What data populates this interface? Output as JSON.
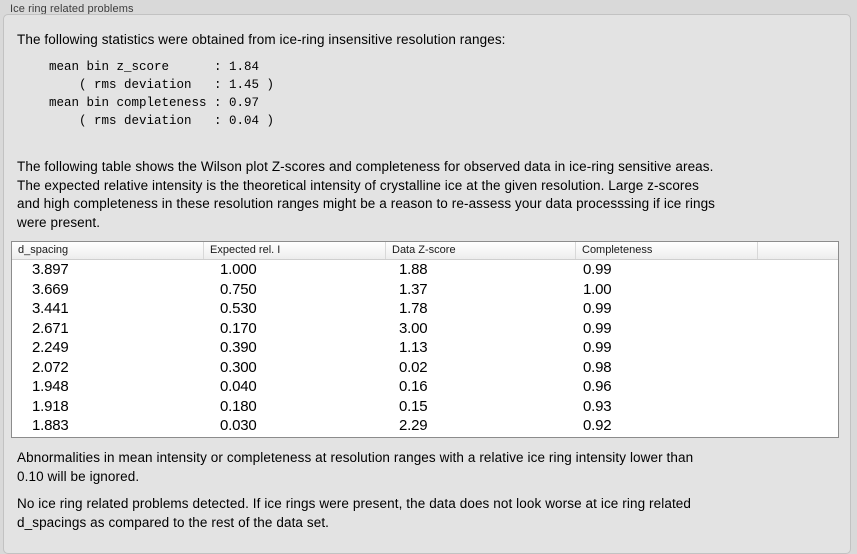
{
  "section": {
    "title": "Ice ring related problems"
  },
  "intro": "The following statistics were obtained from ice-ring insensitive resolution ranges:",
  "stats": {
    "lines": [
      "mean bin z_score      : 1.84",
      "    ( rms deviation   : 1.45 )",
      "mean bin completeness : 0.97",
      "    ( rms deviation   : 0.04 )"
    ]
  },
  "description": {
    "lines": [
      "The following table shows the Wilson plot Z-scores and completeness for observed data in ice-ring sensitive areas.",
      "The expected relative intensity is the theoretical intensity of crystalline ice at the given resolution. Large z-scores",
      "and high completeness in these resolution ranges might be a reason to re-assess your data processsing if ice rings",
      "were present."
    ]
  },
  "table": {
    "columns": [
      "d_spacing",
      "Expected rel. I",
      "Data Z-score",
      "Completeness"
    ],
    "rows": [
      [
        "3.897",
        "1.000",
        "1.88",
        "0.99"
      ],
      [
        "3.669",
        "0.750",
        "1.37",
        "1.00"
      ],
      [
        "3.441",
        "0.530",
        "1.78",
        "0.99"
      ],
      [
        "2.671",
        "0.170",
        "3.00",
        "0.99"
      ],
      [
        "2.249",
        "0.390",
        "1.13",
        "0.99"
      ],
      [
        "2.072",
        "0.300",
        "0.02",
        "0.98"
      ],
      [
        "1.948",
        "0.040",
        "0.16",
        "0.96"
      ],
      [
        "1.918",
        "0.180",
        "0.15",
        "0.93"
      ],
      [
        "1.883",
        "0.030",
        "2.29",
        "0.92"
      ]
    ]
  },
  "notes": {
    "ignored_lines": [
      "Abnormalities in mean intensity or completeness at resolution ranges with a relative ice ring intensity lower than",
      "0.10 will be ignored."
    ],
    "conclusion_lines": [
      "No ice ring related problems detected. If ice rings were present, the data does not look worse at ice ring related",
      "d_spacings as compared to the rest of the data set."
    ]
  },
  "colors": {
    "window_bg": "#d9d9d9",
    "groupbox_bg": "#e3e3e3",
    "groupbox_border": "#c2c2c2",
    "table_border": "#8c8c8c"
  }
}
